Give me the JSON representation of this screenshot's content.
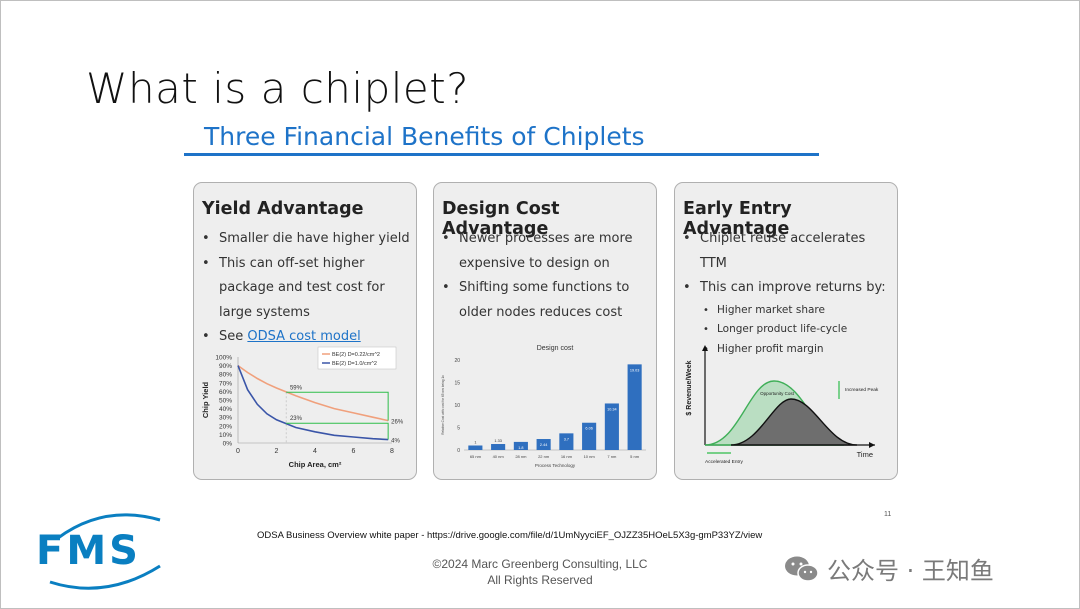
{
  "slide": {
    "title": "What is a chiplet?",
    "subtitle": "Three Financial Benefits of Chiplets",
    "page_number": "11",
    "source_note": "ODSA Business Overview white paper - https://drive.google.com/file/d/1UmNyyciEF_OJZZ35HOeL5X3g-gmP33YZ/view",
    "copyright_line1": "©2024 Marc Greenberg Consulting, LLC",
    "copyright_line2": "All Rights Reserved",
    "logo_text": "FMS",
    "watermark": "公众号 · 王知鱼",
    "accent_color": "#1e73c8"
  },
  "cards": {
    "yield": {
      "title": "Yield Advantage",
      "bullet1": "Smaller die have higher yield",
      "bullet2": "This can off-set higher package and test cost for large systems",
      "bullet3_prefix": "See ",
      "bullet3_link": "ODSA cost model"
    },
    "design": {
      "title": "Design Cost Advantage",
      "bullet1": "Newer processes are more expensive to design on",
      "bullet2": "Shifting some functions to older nodes reduces cost"
    },
    "early": {
      "title": "Early Entry Advantage",
      "bullet1": "Chiplet reuse accelerates TTM",
      "bullet2": "This can improve returns by:",
      "sub1": "Higher market share",
      "sub2": "Longer product life-cycle",
      "sub3": "Higher profit margin"
    }
  },
  "chart_data": [
    {
      "type": "line",
      "xlabel": "Chip Area, cm²",
      "ylabel": "Chip Yield",
      "xlim": [
        0,
        8
      ],
      "ylim": [
        0,
        100
      ],
      "x_ticks": [
        "0",
        "2",
        "4",
        "6",
        "8"
      ],
      "y_ticks": [
        "0%",
        "10%",
        "20%",
        "30%",
        "40%",
        "50%",
        "60%",
        "70%",
        "80%",
        "90%",
        "100%"
      ],
      "legend_position": "top-right",
      "series": [
        {
          "name": "BE(2) D=0.22/cm^2",
          "color": "#f0a07c",
          "x": [
            0,
            0.5,
            1,
            1.5,
            2,
            3,
            4,
            5,
            6,
            7,
            7.8
          ],
          "y": [
            90,
            82,
            75,
            69,
            64,
            55,
            47,
            40,
            35,
            30,
            26
          ]
        },
        {
          "name": "BE(2) D=1.0/cm^2",
          "color": "#3a55a8",
          "x": [
            0,
            0.5,
            1,
            1.5,
            2,
            3,
            4,
            5,
            6,
            7,
            7.8
          ],
          "y": [
            90,
            62,
            45,
            34,
            27,
            18,
            13,
            9,
            7,
            5,
            4
          ]
        }
      ],
      "annotations": [
        "59%",
        "23%",
        "26%",
        "4%"
      ]
    },
    {
      "type": "bar",
      "title": "Design cost",
      "xlabel": "Process Technology",
      "ylabel": "Relative Cost with cost for 65 nm being 1x",
      "ylim": [
        0,
        20
      ],
      "y_ticks": [
        "0",
        "5",
        "10",
        "15",
        "20"
      ],
      "categories": [
        "65 nm",
        "40 nm",
        "28 nm",
        "22 nm",
        "16 nm",
        "10 nm",
        "7 nm",
        "5 nm"
      ],
      "values": [
        1,
        1.33,
        1.8,
        2.44,
        3.7,
        6.06,
        10.34,
        19.03
      ],
      "value_labels": [
        "1",
        "1.33",
        "1.8",
        "2.44",
        "3.7",
        "6.06",
        "10.34",
        "19.03"
      ],
      "color": "#2f6fbf"
    },
    {
      "type": "area",
      "xlabel": "Time",
      "ylabel": "$ Revenue/Week",
      "series": [
        {
          "name": "Opportunity Cost",
          "color": "#8fd19e"
        },
        {
          "name": "Increased Peak",
          "color": "#6e6e6e"
        }
      ],
      "annotations": [
        "Opportunity Cost",
        "Increased Peak",
        "Accelerated Entry"
      ]
    }
  ]
}
